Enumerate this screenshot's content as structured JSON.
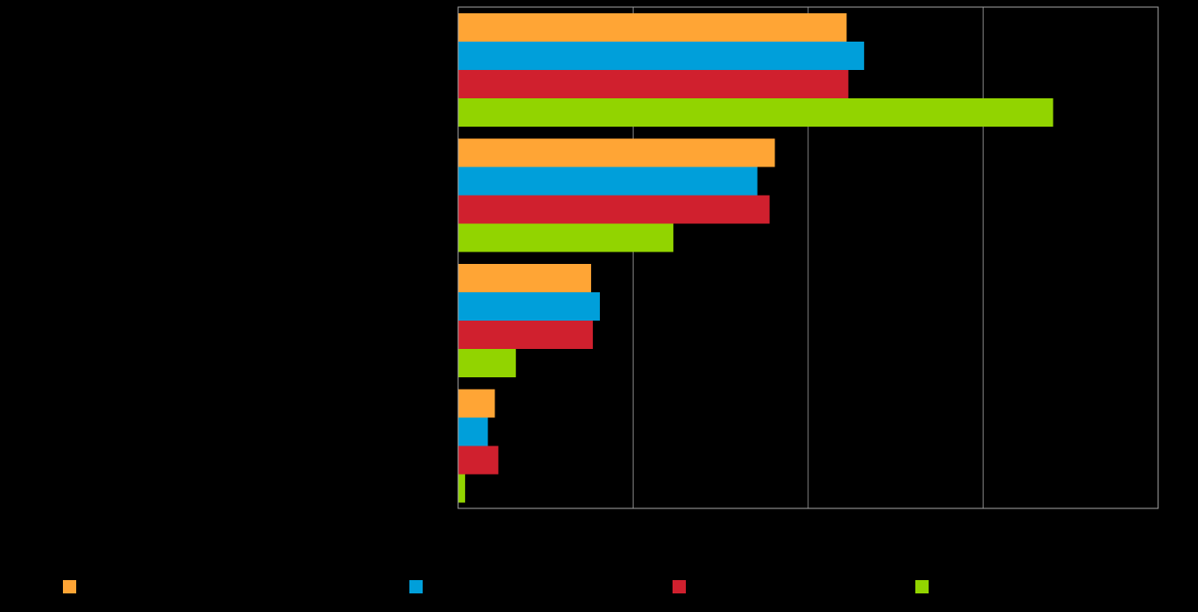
{
  "chart_data": {
    "type": "bar",
    "orientation": "horizontal",
    "title": "",
    "xlabel": "",
    "ylabel": "",
    "xlim": [
      0,
      40
    ],
    "x_gridlines": [
      10,
      20,
      30
    ],
    "grid": true,
    "legend_placement": "bottom",
    "categories": [
      "",
      "",
      "",
      ""
    ],
    "series": [
      {
        "color": "#FFA535",
        "values": [
          22.2,
          18.1,
          7.6,
          2.1
        ]
      },
      {
        "color": "#009FDA",
        "values": [
          23.2,
          17.1,
          8.1,
          1.7
        ]
      },
      {
        "color": "#D0202E",
        "values": [
          22.3,
          17.8,
          7.7,
          2.3
        ]
      },
      {
        "color": "#92D400",
        "values": [
          34.0,
          12.3,
          3.3,
          0.4
        ]
      }
    ]
  },
  "colors": {
    "background": "#000000",
    "gridline": "#7F7F7F",
    "axis": "#A6A6A6"
  }
}
